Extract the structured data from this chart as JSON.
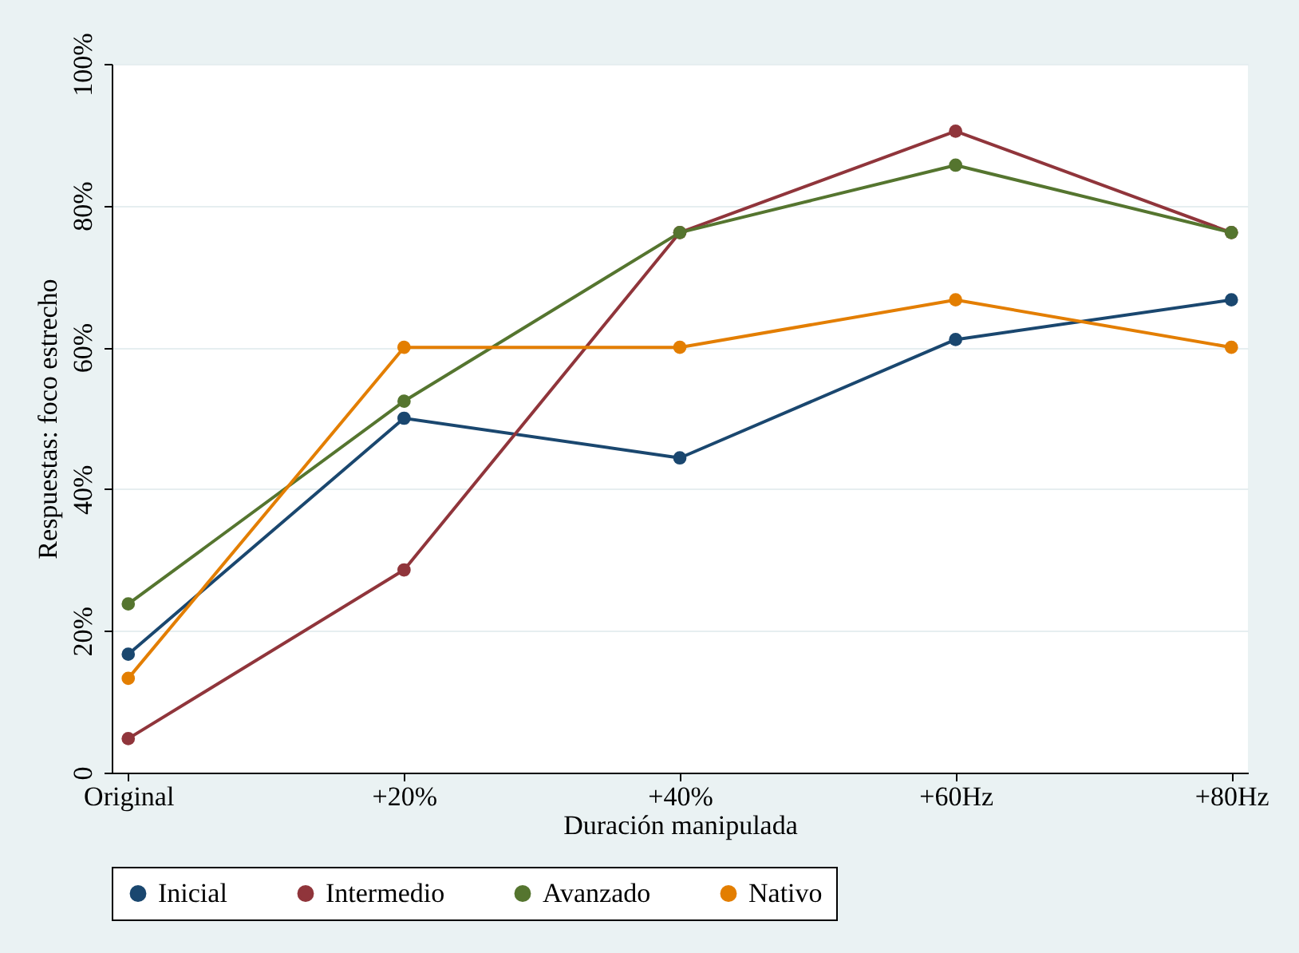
{
  "chart_data": {
    "type": "line",
    "xlabel": "Duración manipulada",
    "ylabel": "Respuestas: foco estrecho",
    "categories": [
      "Original",
      "+20%",
      "+40%",
      "+60Hz",
      "+80Hz"
    ],
    "series": [
      {
        "name": "Inicial",
        "color": "#1a476f",
        "values": [
          16.7,
          50,
          44.4,
          61.1,
          66.7
        ]
      },
      {
        "name": "Intermedio",
        "color": "#90353b",
        "values": [
          4.8,
          28.6,
          76.2,
          90.5,
          76.2
        ]
      },
      {
        "name": "Avanzado",
        "color": "#55752f",
        "values": [
          23.8,
          52.4,
          76.2,
          85.7,
          76.2
        ]
      },
      {
        "name": "Nativo",
        "color": "#e37e00",
        "values": [
          13.3,
          60,
          60,
          66.7,
          60
        ]
      }
    ],
    "ylim": [
      0,
      100
    ],
    "yticks": [
      0,
      {
        "value": 20,
        "label": "20%"
      },
      {
        "value": 40,
        "label": "40%"
      },
      {
        "value": 60,
        "label": "60%"
      },
      {
        "value": 80,
        "label": "80%"
      },
      {
        "value": 100,
        "label": "100%"
      }
    ],
    "grid": "y",
    "legend": "bottom",
    "marker": "circle",
    "line_style": "solid"
  }
}
